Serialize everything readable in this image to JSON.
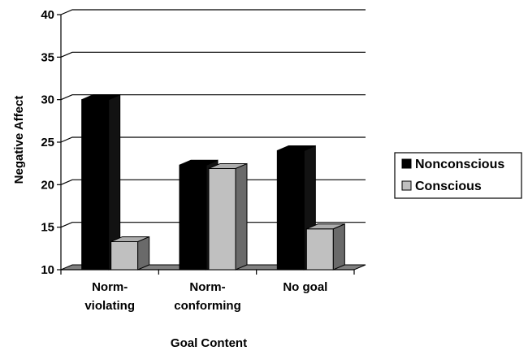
{
  "chart_data": {
    "type": "bar",
    "style": "3d-clustered-column",
    "categories": [
      [
        "Norm-",
        "violating"
      ],
      [
        "Norm-",
        "conforming"
      ],
      [
        "No goal"
      ]
    ],
    "series": [
      {
        "name": "Nonconscious",
        "values": [
          30,
          22.3,
          24
        ],
        "color": "#000000"
      },
      {
        "name": "Conscious",
        "values": [
          13.3,
          21.9,
          14.8
        ],
        "color": "#c0c0c0"
      }
    ],
    "ylabel": "Negative Affect",
    "xlabel": "Goal Content",
    "ylim": [
      10,
      40
    ],
    "yticks": [
      10,
      15,
      20,
      25,
      30,
      35,
      40
    ],
    "grid": true,
    "legend_position": "right"
  }
}
